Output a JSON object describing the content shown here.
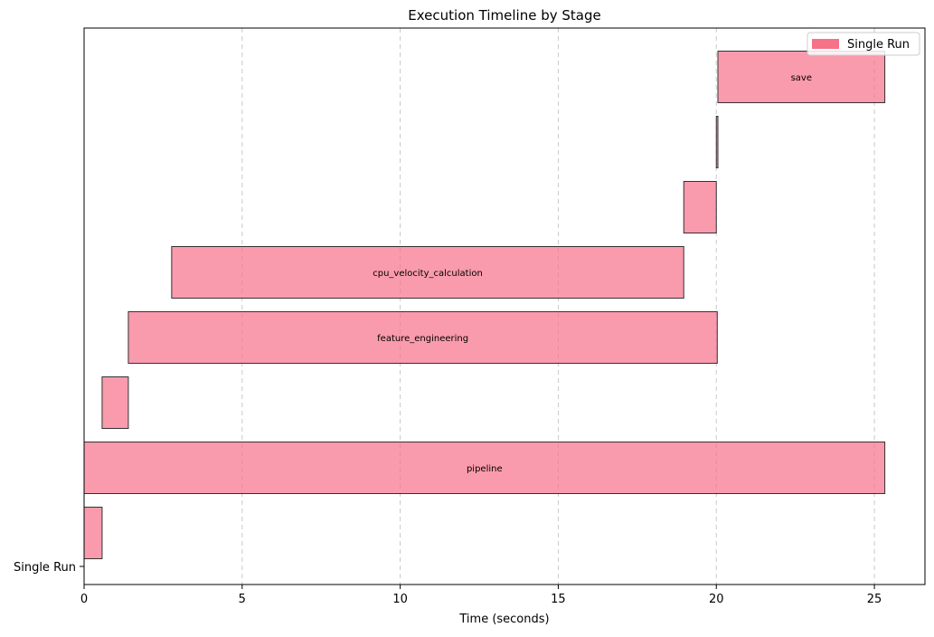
{
  "chart_data": {
    "type": "bar",
    "orientation": "horizontal",
    "chart_style": "gantt",
    "title": "Execution Timeline by Stage",
    "xlabel": "Time (seconds)",
    "ylabel": "",
    "xlim": [
      0,
      26.6
    ],
    "x_ticks": [
      0,
      5,
      10,
      15,
      20,
      25
    ],
    "y_tick_labels": [
      "Single Run"
    ],
    "grid": {
      "x": true,
      "y": false,
      "style": "dashed"
    },
    "legend": {
      "position": "top-right",
      "entries": [
        "Single Run"
      ]
    },
    "bar_color": "#f77189",
    "edge_color": "#333333",
    "bars": [
      {
        "label": "",
        "start": 0.0,
        "end": 0.57
      },
      {
        "label": "pipeline",
        "start": 0.0,
        "end": 25.33
      },
      {
        "label": "",
        "start": 0.57,
        "end": 1.4
      },
      {
        "label": "feature_engineering",
        "start": 1.4,
        "end": 20.03
      },
      {
        "label": "cpu_velocity_calculation",
        "start": 2.77,
        "end": 18.97
      },
      {
        "label": "",
        "start": 18.97,
        "end": 20.0
      },
      {
        "label": "",
        "start": 20.0,
        "end": 20.05
      },
      {
        "label": "save",
        "start": 20.05,
        "end": 25.33
      }
    ]
  }
}
